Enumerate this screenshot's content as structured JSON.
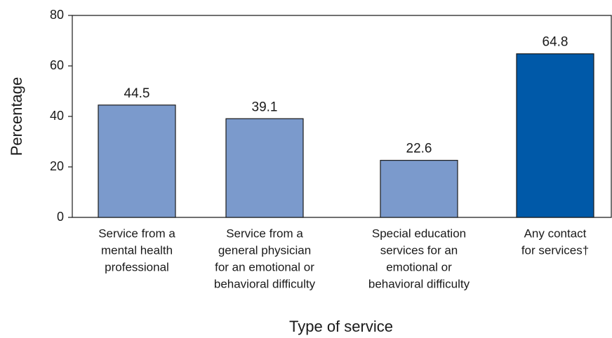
{
  "chart_data": {
    "type": "bar",
    "x_label": "Type of service",
    "y_label": "Percentage",
    "categories": [
      [
        "Service from a",
        "mental health",
        "professional"
      ],
      [
        "Service from a",
        "general physician",
        "for an emotional or",
        "behavioral difficulty"
      ],
      [
        "Special education",
        "services for an",
        "emotional or",
        "behavioral difficulty"
      ],
      [
        "Any contact",
        "for services†"
      ]
    ],
    "values": [
      44.5,
      39.1,
      22.6,
      64.8
    ],
    "colors": [
      "#7b9acc",
      "#7b9acc",
      "#7b9acc",
      "#0059a8"
    ],
    "ylim": [
      0,
      80
    ],
    "yticks": [
      0,
      20,
      40,
      60,
      80
    ]
  }
}
